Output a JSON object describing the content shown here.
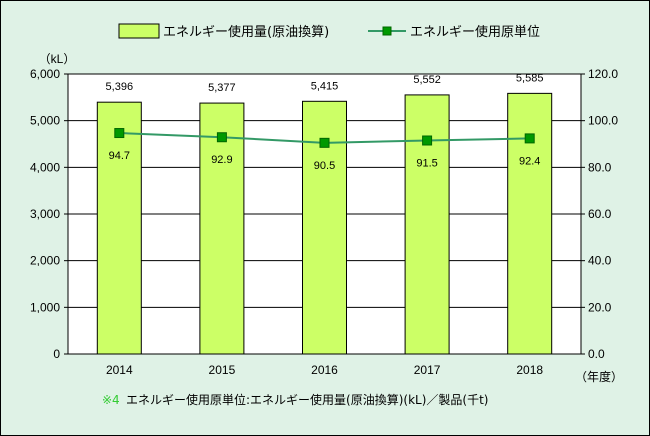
{
  "chart_data": {
    "type": "bar",
    "categories": [
      "2014",
      "2015",
      "2016",
      "2017",
      "2018"
    ],
    "series": [
      {
        "name": "エネルギー使用量(原油換算)",
        "type": "bar",
        "axis": "left",
        "values": [
          5396,
          5377,
          5415,
          5552,
          5585
        ],
        "labels": [
          "5,396",
          "5,377",
          "5,415",
          "5,552",
          "5,585"
        ],
        "color": "#ccff66"
      },
      {
        "name": "エネルギー使用原単位",
        "type": "line",
        "axis": "right",
        "values": [
          94.7,
          92.9,
          90.5,
          91.5,
          92.4
        ],
        "labels": [
          "94.7",
          "92.9",
          "90.5",
          "91.5",
          "92.4"
        ],
        "color": "#339966"
      }
    ],
    "y_left": {
      "unit_label": "（kL）",
      "range": [
        0,
        6000
      ],
      "ticks": [
        0,
        1000,
        2000,
        3000,
        4000,
        5000,
        6000
      ],
      "tick_labels": [
        "0",
        "1,000",
        "2,000",
        "3,000",
        "4,000",
        "5,000",
        "6,000"
      ]
    },
    "y_right": {
      "range": [
        0,
        120
      ],
      "ticks": [
        0,
        20,
        40,
        60,
        80,
        100,
        120
      ],
      "tick_labels": [
        "0.0",
        "20.0",
        "40.0",
        "60.0",
        "80.0",
        "100.0",
        "120.0"
      ]
    },
    "x_unit_label": "（年度）",
    "grid": true,
    "legend_position": "top"
  },
  "note": {
    "marker": "※4",
    "text": "エネルギー使用原単位:エネルギー使用量(原油換算)(kL)／製品(千t)"
  },
  "colors": {
    "background": "#dff2e6",
    "plot": "#ffffff",
    "note_marker": "#33cc33"
  }
}
